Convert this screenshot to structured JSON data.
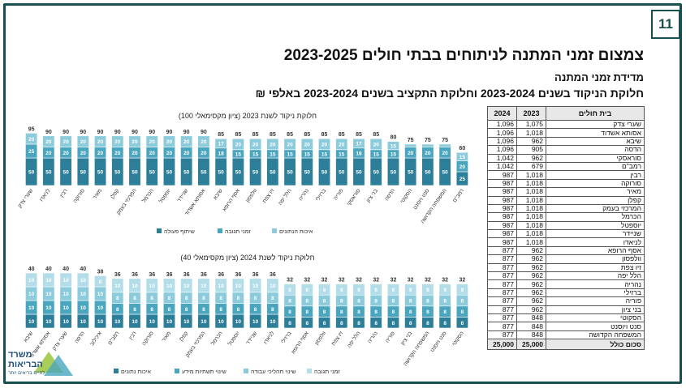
{
  "header": {
    "page_number": "11",
    "title": "צמצום זמני המתנה לניתוחים בבתי חולים 2023-2025",
    "subtitle": "מדידת זמני המתנה",
    "section_title": "חלוקת הניקוד בשנים 2023-2024 וחלוקת התקציב בשנים 2023-2024 באלפי ₪"
  },
  "logo": {
    "line1": "משרד",
    "line2": "הבריאות",
    "line3": "לחיים בריאים יותר"
  },
  "colors": {
    "dark": "#2d7e98",
    "mid": "#4aa6bf",
    "light": "#8ccbdb",
    "lighter": "#b3dde8",
    "frame": "#17504f"
  },
  "table": {
    "headers": [
      "בית חולים",
      "2023",
      "2024"
    ],
    "rows": [
      [
        "שערי צדק",
        "1,075",
        "1,096"
      ],
      [
        "אסותא אשדוד",
        "1,018",
        "1,096"
      ],
      [
        "שיבא",
        "962",
        "1,096"
      ],
      [
        "הדסה",
        "905",
        "1,096"
      ],
      [
        "סוראסקי",
        "962",
        "1,042"
      ],
      [
        "רמב\"ם",
        "679",
        "1,042"
      ],
      [
        "רבין",
        "1,018",
        "987"
      ],
      [
        "סורוקה",
        "1,018",
        "987"
      ],
      [
        "מאיר",
        "1,018",
        "987"
      ],
      [
        "קפלן",
        "1,018",
        "987"
      ],
      [
        "המרכזי בעמק",
        "1,018",
        "987"
      ],
      [
        "הכרמל",
        "1,018",
        "987"
      ],
      [
        "יוספטל",
        "1,018",
        "987"
      ],
      [
        "שניידר",
        "1,018",
        "987"
      ],
      [
        "לניאדו",
        "1,018",
        "987"
      ],
      [
        "אסף הרופא",
        "962",
        "877"
      ],
      [
        "וולפסון",
        "962",
        "877"
      ],
      [
        "זיו צפת",
        "962",
        "877"
      ],
      [
        "הלל יפה",
        "962",
        "877"
      ],
      [
        "נהריה",
        "962",
        "877"
      ],
      [
        "ברזילי",
        "962",
        "877"
      ],
      [
        "פוריה",
        "962",
        "877"
      ],
      [
        "בני ציון",
        "962",
        "877"
      ],
      [
        "הסקוטי",
        "848",
        "877"
      ],
      [
        "סנט ויוסנט",
        "848",
        "877"
      ],
      [
        "המשפחה הקדושה",
        "848",
        "877"
      ]
    ],
    "total": [
      "סכום כולל",
      "25,000",
      "25,000"
    ]
  },
  "chart_data": [
    {
      "type": "bar",
      "stacked": true,
      "title": "חלוקת ניקוד לשנת 2023 (ציון מקסימאלי 100)",
      "categories": [
        "שערי צדק",
        "לניאדו",
        "רבין",
        "סורוקה",
        "מאיר",
        "קפלן",
        "המרכזי בעמק",
        "הכרמל",
        "יוספטל",
        "שניידר",
        "אסותא אשדוד",
        "שיבא",
        "אסף הרופא",
        "וולפסון",
        "זיו צפת",
        "הלל יפה",
        "נהריה",
        "ברזילי",
        "פוריה",
        "סוראסקי",
        "בני ציון",
        "הדסה",
        "הסקוטי",
        "סנט ויוסנט",
        "המשפחה הקדושה",
        "רמב\"ם"
      ],
      "totals": [
        95,
        90,
        90,
        90,
        90,
        90,
        90,
        90,
        90,
        90,
        90,
        85,
        85,
        85,
        85,
        85,
        85,
        85,
        85,
        85,
        85,
        80,
        75,
        75,
        75,
        60
      ],
      "series": [
        {
          "name": "שיתוף פעולה",
          "color": "#2d7e98",
          "values": [
            50,
            50,
            50,
            50,
            50,
            50,
            50,
            50,
            50,
            50,
            50,
            50,
            50,
            50,
            50,
            50,
            50,
            50,
            50,
            50,
            50,
            50,
            50,
            50,
            50,
            25
          ]
        },
        {
          "name": "זמני תגובה",
          "color": "#4aa6bf",
          "values": [
            25,
            20,
            20,
            20,
            20,
            20,
            20,
            20,
            20,
            20,
            20,
            18,
            15,
            15,
            15,
            15,
            15,
            15,
            15,
            18,
            15,
            15,
            20,
            20,
            20,
            20
          ]
        },
        {
          "name": "איכות הנתונים",
          "color": "#8ccbdb",
          "values": [
            20,
            20,
            20,
            20,
            20,
            20,
            20,
            20,
            20,
            20,
            20,
            17,
            20,
            20,
            20,
            20,
            20,
            20,
            20,
            17,
            20,
            15,
            5,
            5,
            5,
            15
          ]
        }
      ],
      "ylim": [
        0,
        100
      ]
    },
    {
      "type": "bar",
      "stacked": true,
      "title": "חלוקת ניקוד לשנת 2024 (ציון מקסימאלי 40)",
      "categories": [
        "שיבא",
        "אסותא אשדוד",
        "שערי צדק",
        "הדסה",
        "איכילוב",
        "רמב\"ם",
        "רבין",
        "סורוקה",
        "מאיר",
        "קפלן",
        "המרכזי בעמק",
        "הכרמל",
        "יוספטל",
        "שניידר",
        "לניאדו",
        "ברזילי",
        "אסף הרופא",
        "וולפסון",
        "זיו צפת",
        "הלל יפה",
        "נהריה",
        "פוריה",
        "בני ציון",
        "המשפחה הקדושה",
        "סנט ויוסנט",
        "הסקוטי"
      ],
      "totals": [
        40,
        40,
        40,
        40,
        38,
        36,
        36,
        36,
        36,
        36,
        36,
        36,
        36,
        36,
        36,
        32,
        32,
        32,
        32,
        32,
        32,
        32,
        32,
        32,
        32,
        32
      ],
      "series": [
        {
          "name": "איכות נתונים",
          "color": "#2d7e98",
          "values": [
            10,
            10,
            10,
            10,
            10,
            10,
            10,
            10,
            10,
            10,
            10,
            10,
            10,
            10,
            10,
            8,
            8,
            8,
            8,
            8,
            8,
            8,
            8,
            8,
            8,
            8
          ]
        },
        {
          "name": "שינוי תשתיות מידע",
          "color": "#4aa6bf",
          "values": [
            10,
            10,
            10,
            10,
            10,
            8,
            8,
            8,
            8,
            8,
            8,
            8,
            8,
            8,
            8,
            8,
            8,
            8,
            8,
            8,
            8,
            8,
            8,
            8,
            8,
            8
          ]
        },
        {
          "name": "שינוי תהליכי עבודה",
          "color": "#8ccbdb",
          "values": [
            10,
            10,
            10,
            10,
            10,
            8,
            8,
            8,
            8,
            8,
            8,
            8,
            8,
            8,
            8,
            8,
            8,
            8,
            8,
            8,
            8,
            8,
            8,
            8,
            8,
            8
          ]
        },
        {
          "name": "זמני תגובה",
          "color": "#b3dde8",
          "values": [
            10,
            10,
            10,
            10,
            8,
            10,
            10,
            10,
            10,
            10,
            10,
            10,
            10,
            10,
            10,
            8,
            8,
            8,
            8,
            8,
            8,
            8,
            8,
            8,
            8,
            8
          ]
        }
      ],
      "ylim": [
        0,
        40
      ]
    }
  ]
}
